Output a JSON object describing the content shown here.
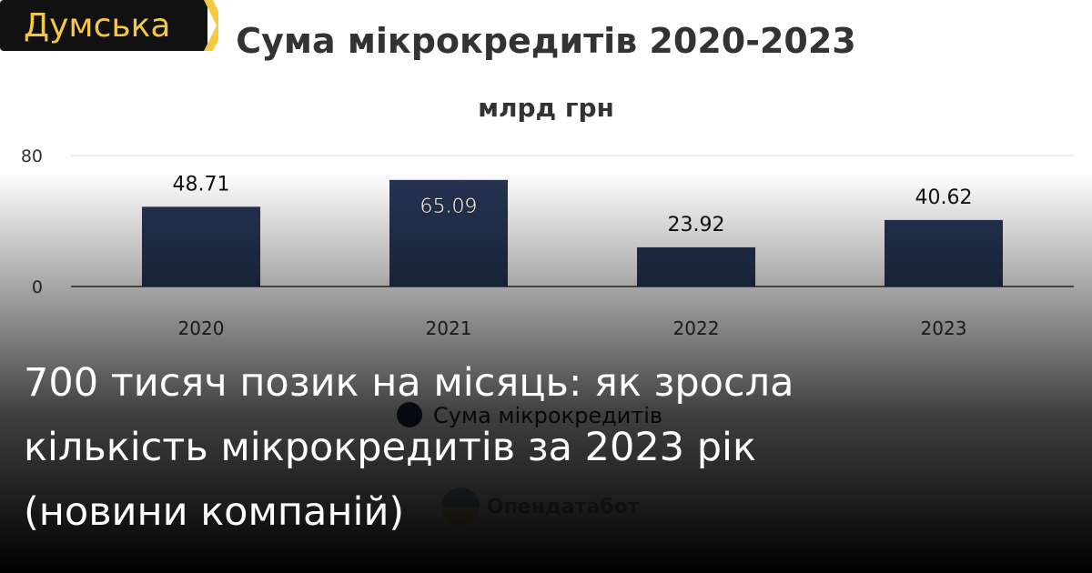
{
  "brand": {
    "name": "Думська",
    "colors": {
      "badge": "#111111",
      "text": "#f5c842"
    }
  },
  "chart_data": {
    "type": "bar",
    "title": "Сума мікрокредитів 2020-2023",
    "subtitle": "млрд грн",
    "categories": [
      "2020",
      "2021",
      "2022",
      "2023"
    ],
    "values": [
      48.71,
      65.09,
      23.92,
      40.62
    ],
    "data_labels": [
      "48.71",
      "65.09",
      "23.92",
      "40.62"
    ],
    "yticks": [
      "0",
      "80"
    ],
    "ylim": [
      0,
      80
    ],
    "grid": true,
    "legend": {
      "placement": "bottom",
      "entries": [
        "Сума мікрокредитів"
      ]
    },
    "colors": {
      "bar": "#263554"
    }
  },
  "watermark": "Опендатабот",
  "headline": "700 тисяч позик на місяць: як зросла кількість мікрокредитів за 2023 рік (новини компаній)"
}
